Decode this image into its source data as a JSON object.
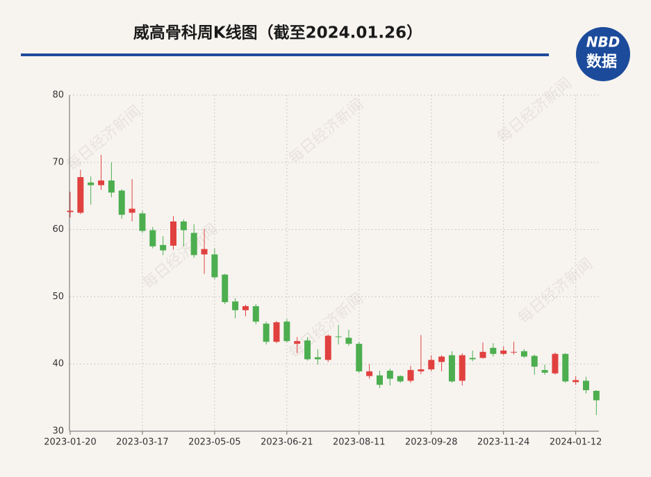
{
  "chart_data": {
    "type": "candlestick",
    "title": "威高骨科周K线图（截至2024.01.26）",
    "logo": {
      "top": "NBD",
      "bottom": "数据"
    },
    "watermark": "每日经济新闻",
    "categories": [
      "2023-01-20",
      null,
      null,
      null,
      null,
      null,
      null,
      "2023-03-17",
      null,
      null,
      null,
      null,
      null,
      null,
      "2023-05-05",
      null,
      null,
      null,
      null,
      null,
      null,
      "2023-06-21",
      null,
      null,
      null,
      null,
      null,
      null,
      "2023-08-11",
      null,
      null,
      null,
      null,
      null,
      null,
      "2023-09-28",
      null,
      null,
      null,
      null,
      null,
      null,
      "2023-11-24",
      null,
      null,
      null,
      null,
      null,
      null,
      "2024-01-12",
      null,
      null
    ],
    "open": [
      62.6,
      62.5,
      67.0,
      66.6,
      67.3,
      65.8,
      62.5,
      62.4,
      59.9,
      57.7,
      57.6,
      61.2,
      59.5,
      56.3,
      56.3,
      53.3,
      49.3,
      48.0,
      48.6,
      46.0,
      43.3,
      46.3,
      43.0,
      43.5,
      41.0,
      40.6,
      44.1,
      43.9,
      43.0,
      38.2,
      38.3,
      39.0,
      38.2,
      37.5,
      38.9,
      39.2,
      40.3,
      41.3,
      37.5,
      40.9,
      40.9,
      42.4,
      41.5,
      41.7,
      41.9,
      41.2,
      39.1,
      38.6,
      41.5,
      37.3,
      37.5,
      36.0
    ],
    "high": [
      65.6,
      68.9,
      67.9,
      71.1,
      70.0,
      66.0,
      67.5,
      62.8,
      60.4,
      59.0,
      62.0,
      61.5,
      60.8,
      60.1,
      57.2,
      53.4,
      49.8,
      48.8,
      48.9,
      46.3,
      46.4,
      46.7,
      44.0,
      44.0,
      42.2,
      44.4,
      45.8,
      45.1,
      43.3,
      40.0,
      39.0,
      39.3,
      38.3,
      39.7,
      44.3,
      41.3,
      41.3,
      41.9,
      41.6,
      42.0,
      43.2,
      43.1,
      42.6,
      43.3,
      42.2,
      41.4,
      39.9,
      41.7,
      41.6,
      38.2,
      38.1,
      36.1
    ],
    "low": [
      61.8,
      62.3,
      63.7,
      65.9,
      64.8,
      61.6,
      61.2,
      59.5,
      57.2,
      56.2,
      57.0,
      57.5,
      55.8,
      53.4,
      52.6,
      48.9,
      46.8,
      47.1,
      45.9,
      42.9,
      43.1,
      43.2,
      41.6,
      40.5,
      39.9,
      40.3,
      42.9,
      42.7,
      38.7,
      37.8,
      36.4,
      36.8,
      37.2,
      37.2,
      38.5,
      38.9,
      38.9,
      37.2,
      36.8,
      40.4,
      40.8,
      41.1,
      41.3,
      41.4,
      40.9,
      38.4,
      38.4,
      38.4,
      37.2,
      36.9,
      35.6,
      32.4
    ],
    "close": [
      62.8,
      67.8,
      66.6,
      67.3,
      65.5,
      62.2,
      63.1,
      59.8,
      57.5,
      56.9,
      61.2,
      59.9,
      56.2,
      57.1,
      52.9,
      49.2,
      48.0,
      48.6,
      46.3,
      43.3,
      46.2,
      43.4,
      43.4,
      40.7,
      40.7,
      44.2,
      44.0,
      43.0,
      38.9,
      38.9,
      36.9,
      37.8,
      37.4,
      39.1,
      39.2,
      40.6,
      41.1,
      37.4,
      41.3,
      40.7,
      41.8,
      41.5,
      42.0,
      41.8,
      41.1,
      39.6,
      38.7,
      41.5,
      37.4,
      37.6,
      36.1,
      34.6
    ],
    "up_color": "#e0413f",
    "down_color": "#4cae4f",
    "ylim": [
      30,
      80
    ],
    "yticks": [
      30,
      40,
      50,
      60,
      70,
      80
    ],
    "grid": true
  }
}
